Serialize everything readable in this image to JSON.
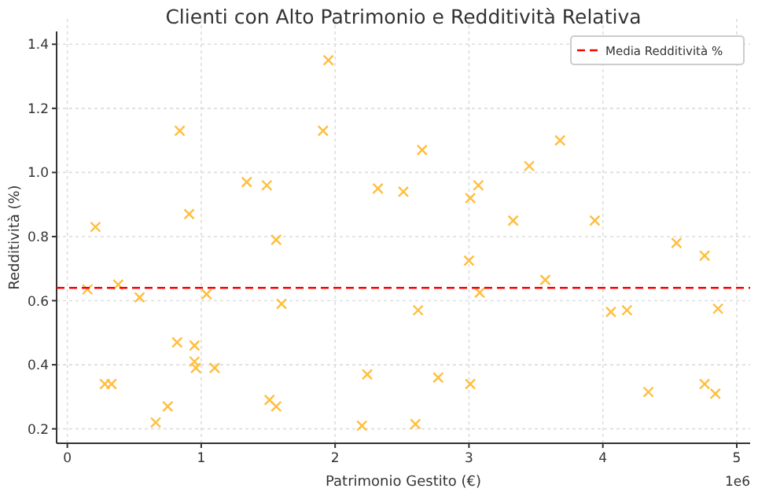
{
  "chart_data": {
    "type": "scatter",
    "title": "Clienti con Alto Patrimonio e Redditività Relativa",
    "xlabel": "Patrimonio Gestito (€)",
    "ylabel": "Redditività (%)",
    "annotations": [
      "1e6"
    ],
    "x": [
      0.21,
      0.84,
      0.91,
      1.34,
      1.49,
      1.56,
      1.95,
      1.91,
      2.32,
      2.51,
      2.65,
      3.01,
      3.07,
      3.33,
      3.45,
      3.68,
      3.94,
      4.55,
      4.76,
      0.15,
      0.38,
      0.54,
      1.04,
      1.6,
      0.82,
      0.95,
      0.95,
      0.96,
      1.1,
      0.28,
      0.33,
      0.75,
      0.66,
      1.51,
      1.56,
      2.2,
      2.24,
      2.62,
      2.77,
      2.6,
      3.01,
      3.08,
      3.57,
      4.06,
      4.18,
      4.34,
      4.76,
      4.84,
      4.86,
      3.0
    ],
    "series": [
      {
        "color": "#ffbe3c",
        "values": [
          0.83,
          1.13,
          0.87,
          0.97,
          0.96,
          0.79,
          1.35,
          1.13,
          0.95,
          0.94,
          1.07,
          0.92,
          0.96,
          0.85,
          1.02,
          1.1,
          0.85,
          0.78,
          0.74,
          0.635,
          0.65,
          0.61,
          0.62,
          0.59,
          0.47,
          0.46,
          0.41,
          0.39,
          0.39,
          0.34,
          0.34,
          0.27,
          0.22,
          0.29,
          0.27,
          0.21,
          0.37,
          0.57,
          0.36,
          0.215,
          0.34,
          0.625,
          0.665,
          0.565,
          0.57,
          0.315,
          0.34,
          0.31,
          0.575,
          0.725
        ]
      }
    ],
    "marker": "cross",
    "xlim": [
      -0.08,
      5.1
    ],
    "ylim": [
      0.155,
      1.44
    ],
    "xticks": [
      0,
      1,
      2,
      3,
      4,
      5
    ],
    "yticks": [
      {
        "value": 0.2,
        "label": "0.2"
      },
      {
        "value": 0.4,
        "label": "0.4"
      },
      {
        "value": 0.6,
        "label": "0.6"
      },
      {
        "value": 0.8,
        "label": "0.8"
      },
      {
        "value": 1.0,
        "label": "1.0"
      },
      {
        "value": 1.2,
        "label": "1.2"
      },
      {
        "value": 1.4,
        "label": "1.4"
      }
    ],
    "ref_lines": [
      {
        "axis": "y",
        "value": 0.64,
        "label": "Media Redditività %",
        "color": "#ff0000",
        "line_style": "dashed"
      }
    ],
    "grid": true,
    "legend": "top right"
  }
}
